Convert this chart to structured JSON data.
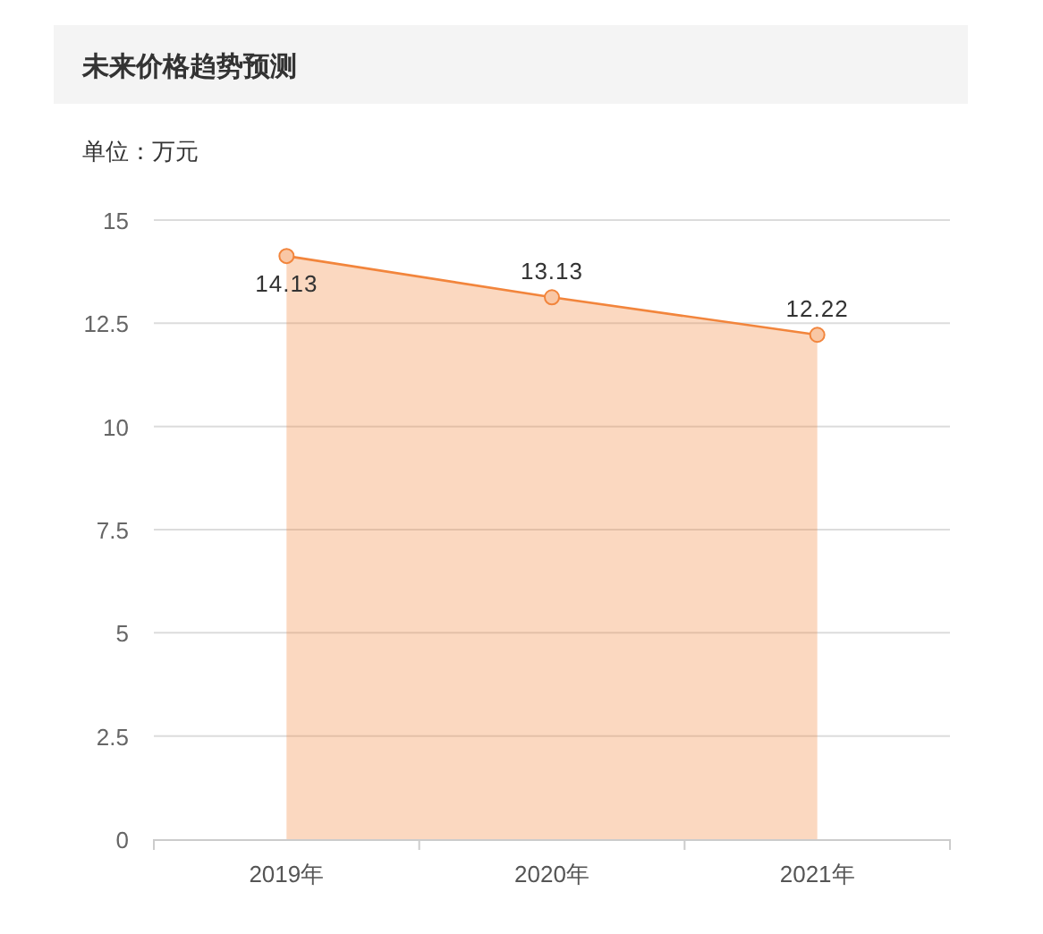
{
  "chart_data": {
    "type": "area",
    "title": "未来价格趋势预测",
    "ylabel": "单位：万元",
    "categories": [
      "2019年",
      "2020年",
      "2021年"
    ],
    "series": [
      {
        "color": "#f2853c",
        "values": [
          14.13,
          13.13,
          12.22
        ]
      }
    ],
    "ylim": [
      0,
      15
    ],
    "yticks": [
      0,
      2.5,
      5,
      7.5,
      10,
      12.5,
      15
    ],
    "grid": "y",
    "marker": "circle",
    "data_labels": true
  }
}
